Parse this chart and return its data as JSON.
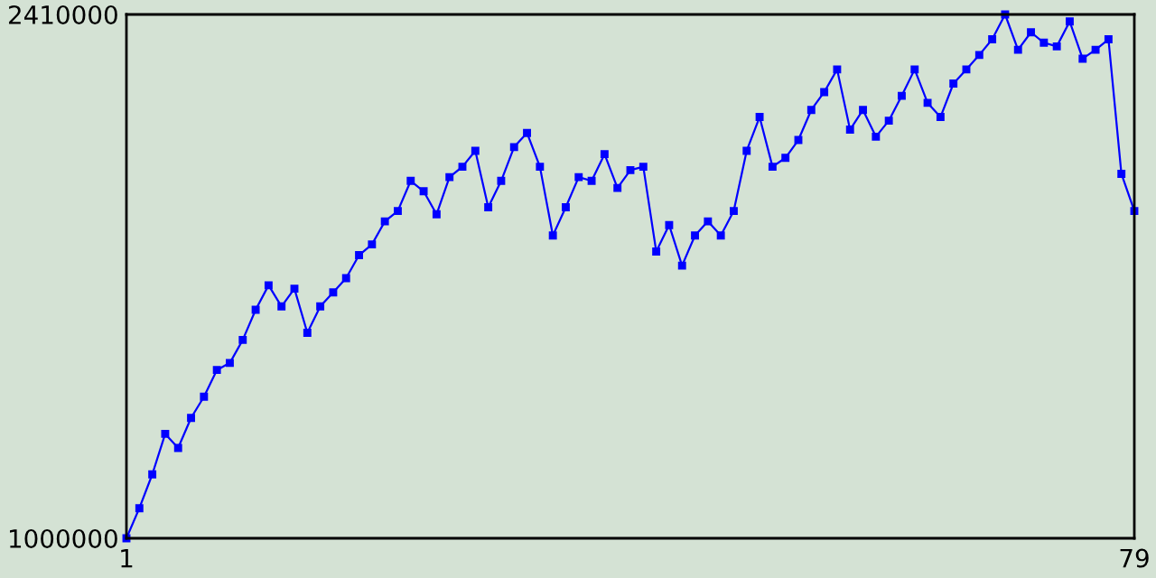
{
  "chart_data": {
    "type": "line",
    "x": [
      1,
      2,
      3,
      4,
      5,
      6,
      7,
      8,
      9,
      10,
      11,
      12,
      13,
      14,
      15,
      16,
      17,
      18,
      19,
      20,
      21,
      22,
      23,
      24,
      25,
      26,
      27,
      28,
      29,
      30,
      31,
      32,
      33,
      34,
      35,
      36,
      37,
      38,
      39,
      40,
      41,
      42,
      43,
      44,
      45,
      46,
      47,
      48,
      49,
      50,
      51,
      52,
      53,
      54,
      55,
      56,
      57,
      58,
      59,
      60,
      61,
      62,
      63,
      64,
      65,
      66,
      67,
      68,
      69,
      70,
      71,
      72,
      73,
      74,
      75,
      76,
      77,
      78,
      79
    ],
    "series": [
      {
        "color": "#0000ff",
        "values": [
          1000000,
          1081000,
          1172000,
          1281000,
          1243000,
          1324000,
          1381000,
          1453000,
          1472000,
          1534000,
          1615000,
          1681000,
          1624000,
          1672000,
          1553000,
          1624000,
          1662000,
          1700000,
          1762000,
          1791000,
          1853000,
          1881000,
          1962000,
          1934000,
          1872000,
          1972000,
          2000000,
          2043000,
          1891000,
          1962000,
          2053000,
          2091000,
          2000000,
          1815000,
          1891000,
          1972000,
          1962000,
          2034000,
          1943000,
          1991000,
          2000000,
          1772000,
          1843000,
          1734000,
          1815000,
          1853000,
          1815000,
          1881000,
          2043000,
          2134000,
          2000000,
          2024000,
          2072000,
          2153000,
          2201000,
          2262000,
          2100000,
          2153000,
          2081000,
          2124000,
          2191000,
          2262000,
          2172000,
          2134000,
          2224000,
          2262000,
          2301000,
          2343000,
          2410000,
          2315000,
          2362000,
          2334000,
          2324000,
          2391000,
          2291000,
          2315000,
          2343000,
          1981000,
          1881000
        ]
      }
    ],
    "xlim": [
      1,
      79
    ],
    "xticks": [
      1,
      79
    ],
    "ylim": [
      1000000,
      2410000
    ],
    "yticks": [
      1000000,
      2410000
    ],
    "marker": "square",
    "line_style": "solid"
  }
}
